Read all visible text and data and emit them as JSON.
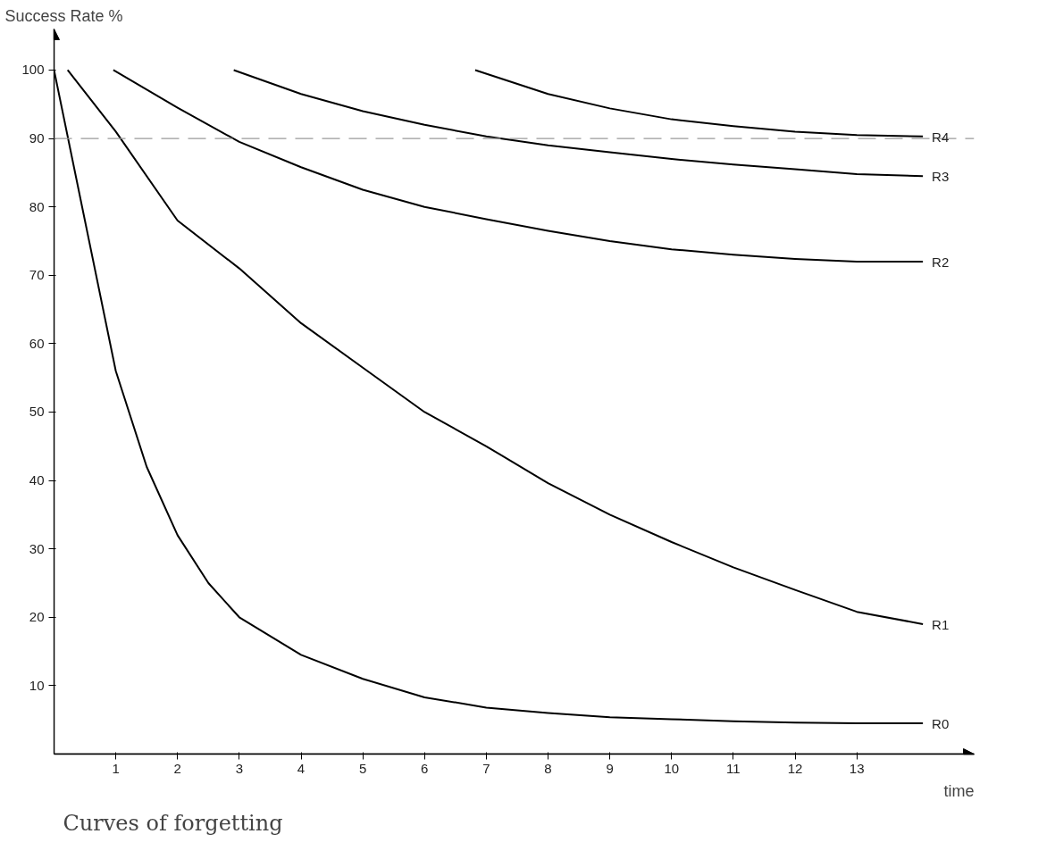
{
  "chart_data": {
    "type": "line",
    "title": "Curves of forgetting",
    "xlabel": "time",
    "ylabel": "Success Rate %",
    "xlim": [
      0,
      14.9
    ],
    "ylim": [
      0,
      106
    ],
    "xticks": [
      1,
      2,
      3,
      4,
      5,
      6,
      7,
      8,
      9,
      10,
      11,
      12,
      13
    ],
    "yticks": [
      10,
      20,
      30,
      40,
      50,
      60,
      70,
      80,
      90,
      100
    ],
    "grid": false,
    "legend": false,
    "marker": "none",
    "line_style": "solid",
    "ref_lines": [
      {
        "axis": "y",
        "value": 90,
        "color": "#999999",
        "line_style": "dashed"
      }
    ],
    "series": [
      {
        "name": "R0",
        "color": "#000000",
        "x": [
          0,
          0.5,
          1,
          1.5,
          2,
          2.5,
          3,
          4,
          5,
          6,
          7,
          8,
          9,
          10,
          11,
          12,
          13,
          14.07
        ],
        "values": [
          100,
          78,
          56,
          42,
          32,
          25,
          20,
          14.5,
          11,
          8.3,
          6.8,
          6,
          5.4,
          5.1,
          4.8,
          4.6,
          4.5,
          4.5
        ]
      },
      {
        "name": "R1",
        "color": "#000000",
        "x": [
          0.22,
          1,
          2,
          3,
          4,
          5,
          6,
          7,
          8,
          9,
          10,
          11,
          12,
          13,
          14.07
        ],
        "values": [
          100,
          91,
          78,
          71,
          63,
          56.5,
          50,
          45,
          39.6,
          35,
          31,
          27.3,
          24,
          20.8,
          19
        ]
      },
      {
        "name": "R2",
        "color": "#000000",
        "x": [
          0.96,
          2,
          3,
          4,
          5,
          6,
          7,
          8,
          9,
          10,
          11,
          12,
          13,
          14.07
        ],
        "values": [
          100,
          94.5,
          89.5,
          85.8,
          82.5,
          80,
          78.2,
          76.5,
          75,
          73.8,
          73,
          72.4,
          72,
          72
        ]
      },
      {
        "name": "R3",
        "color": "#000000",
        "x": [
          2.91,
          4,
          5,
          6,
          7,
          8,
          9,
          10,
          11,
          12,
          13,
          14.07
        ],
        "values": [
          100,
          96.5,
          94,
          92,
          90.3,
          89,
          88,
          87,
          86.2,
          85.5,
          84.8,
          84.5
        ]
      },
      {
        "name": "R4",
        "color": "#000000",
        "x": [
          6.82,
          8,
          9,
          10,
          11,
          12,
          13,
          14.07
        ],
        "values": [
          100,
          96.5,
          94.4,
          92.8,
          91.8,
          91,
          90.5,
          90.3
        ]
      }
    ]
  }
}
